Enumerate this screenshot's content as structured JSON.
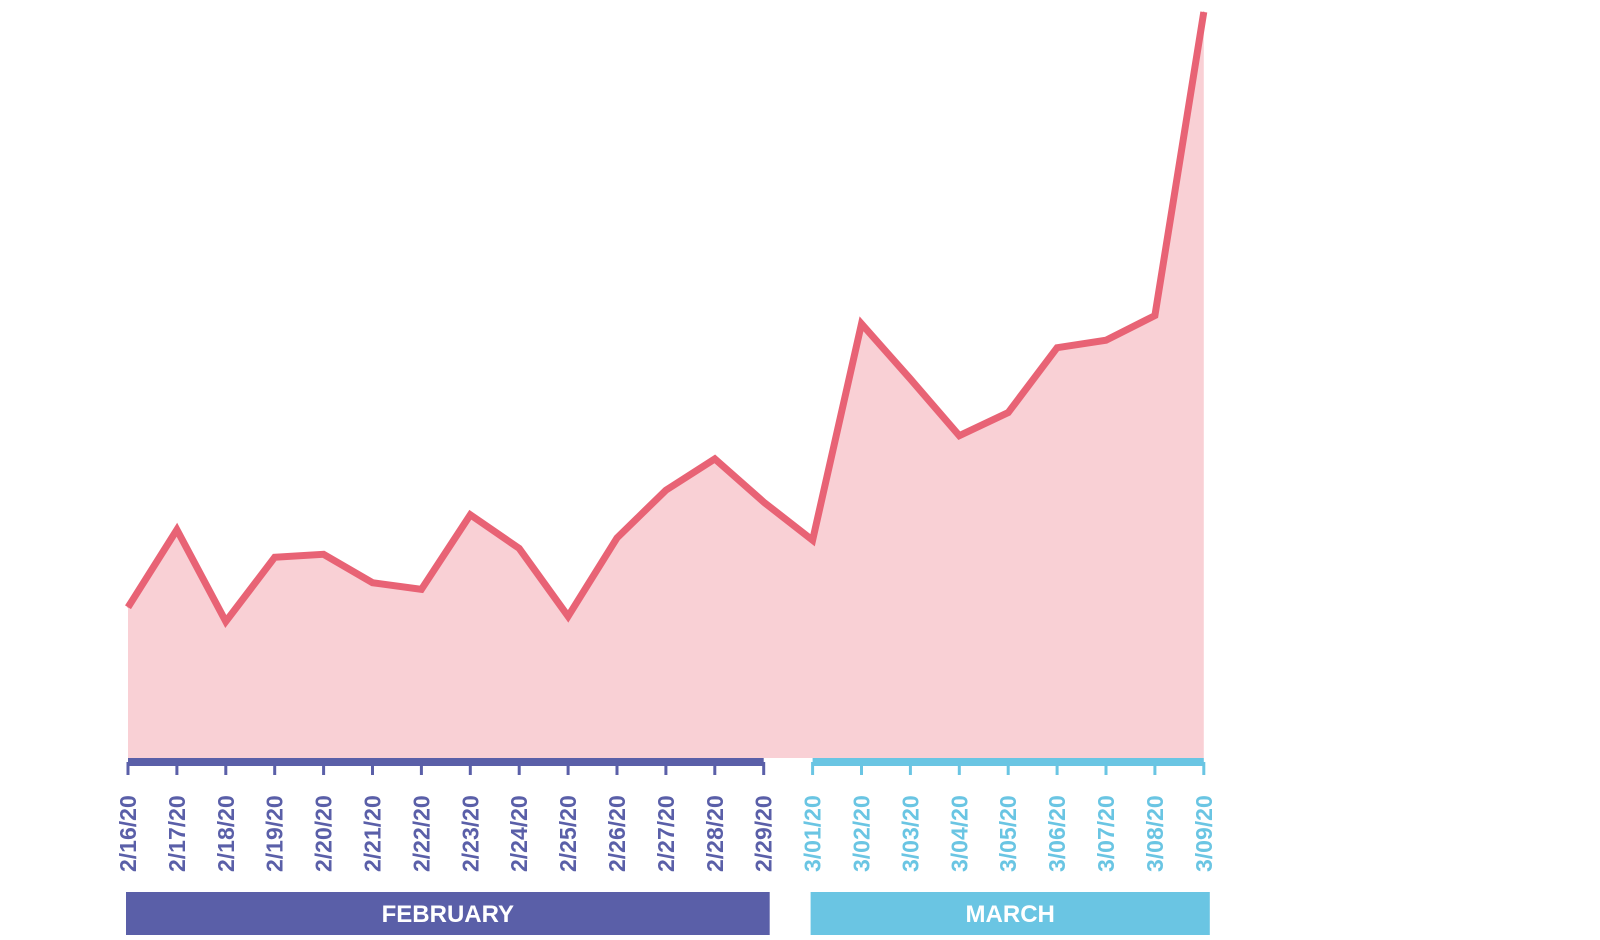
{
  "chart_data": {
    "type": "area",
    "title": "",
    "xlabel": "",
    "ylabel": "",
    "grid": false,
    "legend": "none",
    "ylim": [
      0,
      100
    ],
    "x": [
      "2/16/20",
      "2/17/20",
      "2/18/20",
      "2/19/20",
      "2/20/20",
      "2/21/20",
      "2/22/20",
      "2/23/20",
      "2/24/20",
      "2/25/20",
      "2/26/20",
      "2/27/20",
      "2/28/20",
      "2/29/20",
      "3/01/20",
      "3/02/20",
      "3/03/20",
      "3/04/20",
      "3/05/20",
      "3/06/20",
      "3/07/20",
      "3/08/20",
      "3/09/20"
    ],
    "series": [
      {
        "values": [
          20.2,
          30.6,
          18.3,
          26.9,
          27.3,
          23.5,
          22.6,
          32.6,
          28.1,
          19.0,
          29.5,
          35.9,
          40.1,
          34.3,
          29.2,
          58.2,
          50.8,
          43.2,
          46.3,
          55.0,
          56.0,
          59.3,
          100.0
        ]
      }
    ],
    "months": [
      {
        "label": "FEBRUARY",
        "first_date": "2/16/20",
        "last_date": "2/29/20",
        "color": "#5a5fa8"
      },
      {
        "label": "MARCH",
        "first_date": "3/01/20",
        "last_date": "3/09/20",
        "color": "#6ac5e3"
      }
    ],
    "colors": {
      "line": "#e86375",
      "fill": "#f9d0d5"
    }
  }
}
